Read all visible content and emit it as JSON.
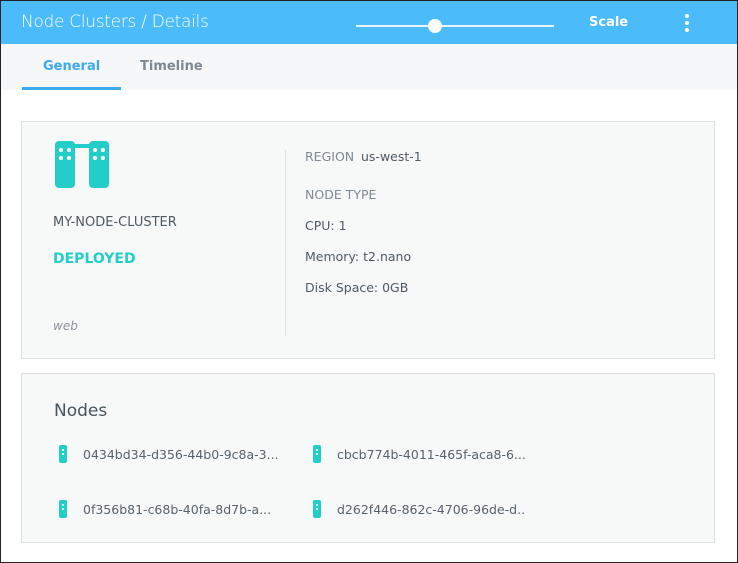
{
  "header": {
    "title": "Node Clusters / Details",
    "slider_value_percent": 40,
    "scale_label": "Scale",
    "menu_icon": "kebab-menu-icon",
    "color": "#4bbbf9"
  },
  "tabs": [
    {
      "label": "General",
      "active": true
    },
    {
      "label": "Timeline",
      "active": false
    }
  ],
  "cluster": {
    "icon": "server-cluster-icon",
    "name": "MY-NODE-CLUSTER",
    "status": "DEPLOYED",
    "status_color": "#23cdc8",
    "tag": "web",
    "region_label": "REGION",
    "region": "us-west-1",
    "node_type_label": "NODE TYPE",
    "cpu": "CPU: 1",
    "memory": "Memory: t2.nano",
    "disk": "Disk Space: 0GB"
  },
  "nodes": {
    "title": "Nodes",
    "items": [
      "0434bd34-d356-44b0-9c8a-3...",
      "cbcb774b-4011-465f-aca8-6...",
      "0f356b81-c68b-40fa-8d7b-a...",
      "d262f446-862c-4706-96de-d.."
    ]
  }
}
